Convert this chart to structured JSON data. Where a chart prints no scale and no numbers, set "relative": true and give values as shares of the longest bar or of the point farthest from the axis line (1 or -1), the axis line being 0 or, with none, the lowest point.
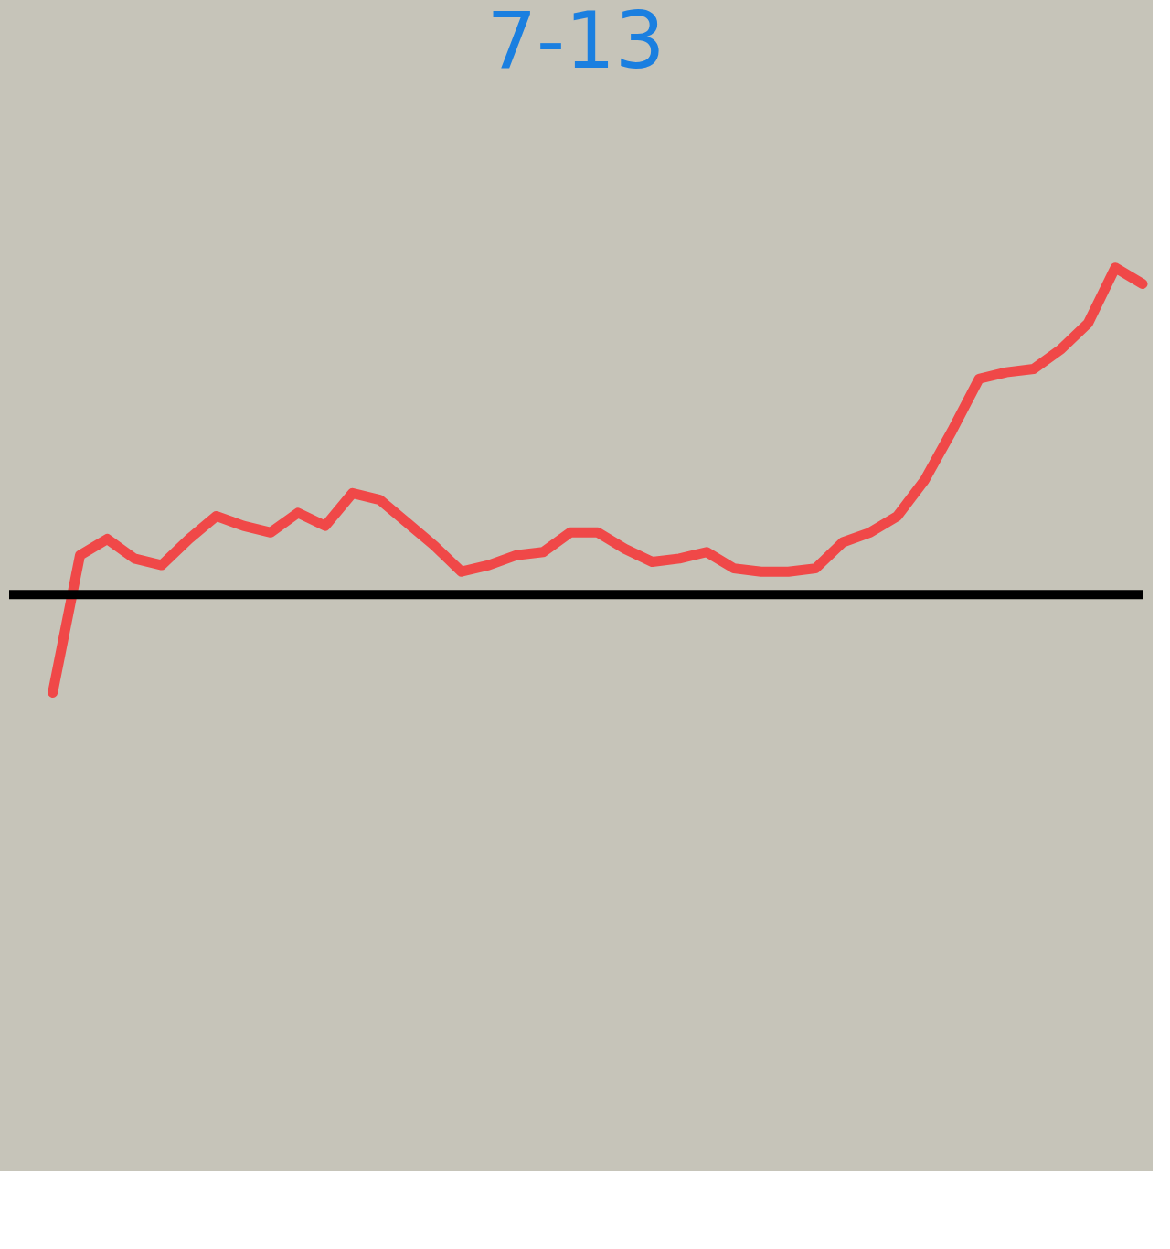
{
  "chart_data": {
    "type": "line",
    "title": "7-13",
    "relative": true,
    "categories": [
      null,
      null,
      null,
      null,
      null,
      null,
      null,
      null,
      null,
      null,
      null,
      null,
      null,
      null,
      null,
      null,
      null,
      null,
      null,
      null,
      null,
      null,
      null,
      null,
      null,
      null,
      null,
      null,
      null,
      null,
      null,
      null,
      null,
      null,
      null,
      null,
      null,
      null,
      null,
      null,
      null
    ],
    "series": [
      {
        "color": "#f04848",
        "values": [
          -0.3,
          0.12,
          0.17,
          0.11,
          0.09,
          0.17,
          0.24,
          0.21,
          0.19,
          0.25,
          0.21,
          0.31,
          0.29,
          0.22,
          0.15,
          0.07,
          0.09,
          0.12,
          0.13,
          0.19,
          0.19,
          0.14,
          0.1,
          0.11,
          0.13,
          0.08,
          0.07,
          0.07,
          0.08,
          0.16,
          0.19,
          0.24,
          0.35,
          0.5,
          0.66,
          0.68,
          0.69,
          0.75,
          0.83,
          1.0,
          0.95
        ]
      }
    ],
    "tick_labels": false,
    "line_style": "solid"
  }
}
